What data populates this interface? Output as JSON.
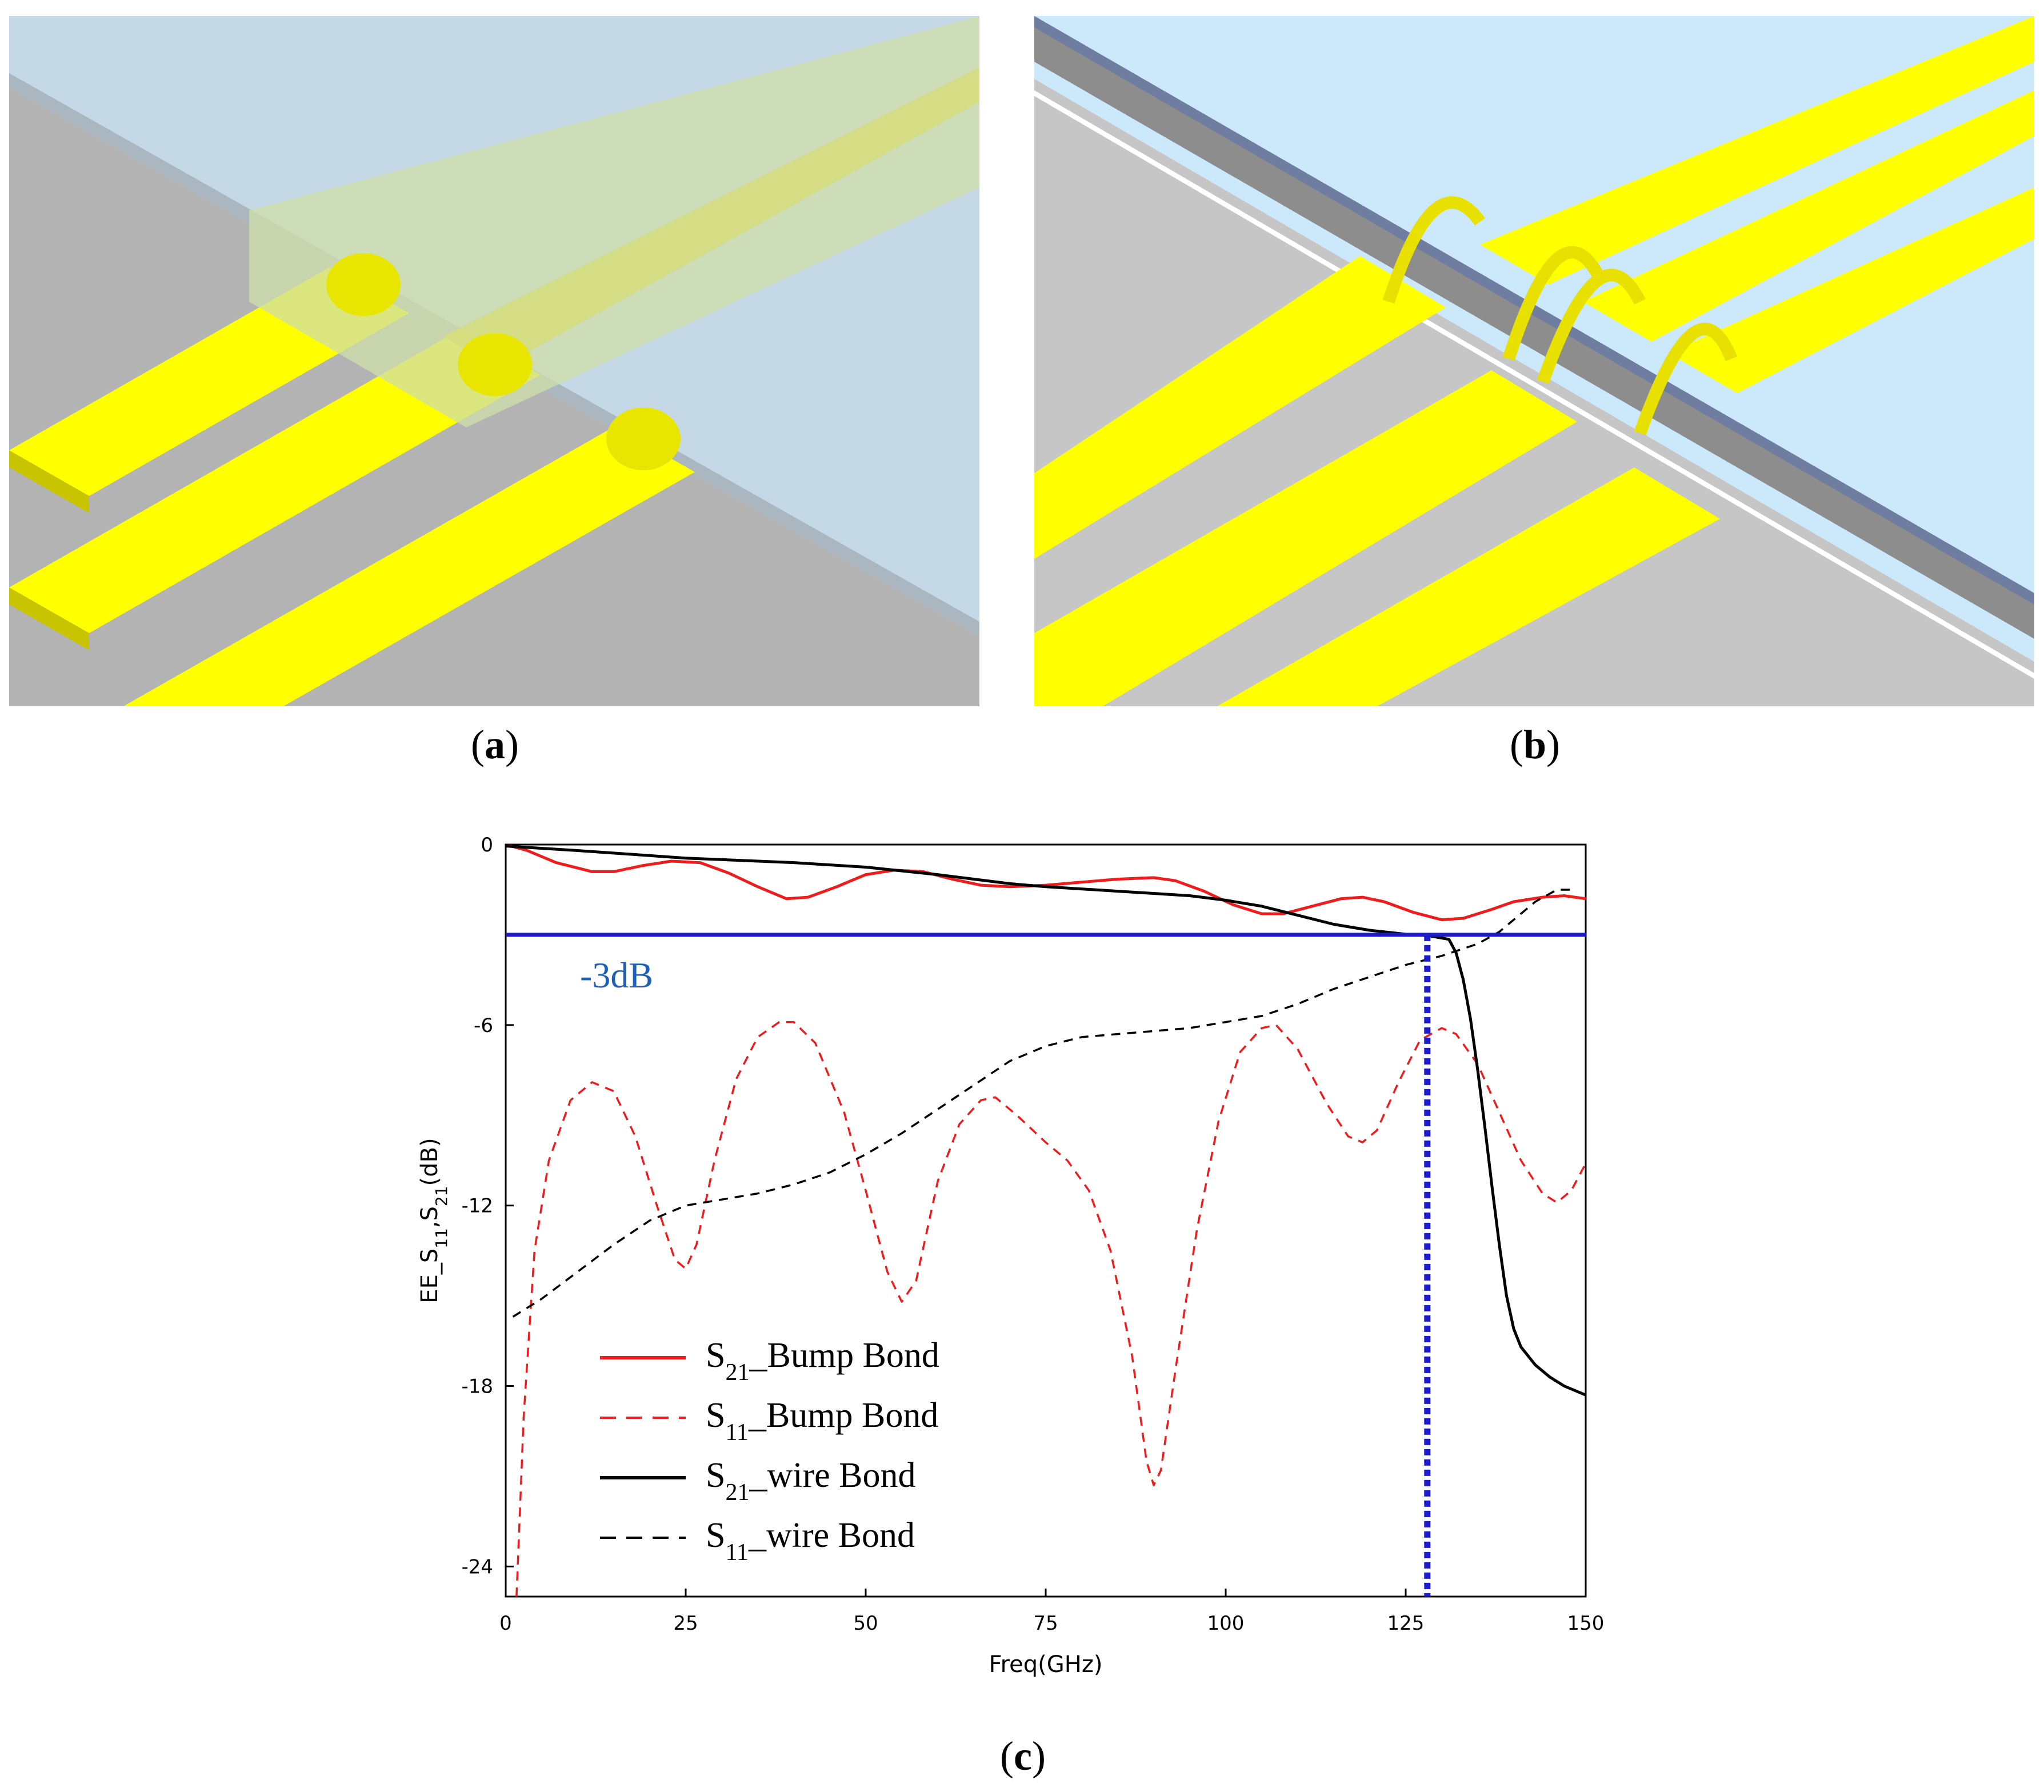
{
  "captions": {
    "a": "a",
    "b": "b",
    "c": "c"
  },
  "panels": {
    "a": {
      "description_icon": "bump-bond-3d-illustration"
    },
    "b": {
      "description_icon": "wire-bond-3d-illustration"
    }
  },
  "colors": {
    "gold": "#ffff00",
    "gold_dark": "#c8c400",
    "substrate": "#b9b9b9",
    "glass": "#c7dbe8",
    "red": "#ee1c1c",
    "blue_line": "#1d1dc8",
    "blue_text": "#1f5fb8"
  },
  "chart_data": {
    "type": "line",
    "title": "",
    "xlabel": "Freq(GHz)",
    "ylabel_parts": {
      "base": "EE_S",
      "sub1": "11",
      "sep": ",S",
      "sub2": "21",
      "unit": "(dB)"
    },
    "xlim": [
      0,
      150
    ],
    "ylim": [
      -25,
      0
    ],
    "xticks": [
      0,
      25,
      50,
      75,
      100,
      125,
      150
    ],
    "yticks": [
      0,
      -6,
      -12,
      -18,
      -24
    ],
    "xtick_labels": [
      "0",
      "25",
      "50",
      "75",
      "100",
      "125",
      "150"
    ],
    "ytick_labels": [
      "0",
      "-6",
      "-12",
      "-18",
      "-24"
    ],
    "annotations": [
      {
        "type": "hline",
        "y": -3,
        "label": "-3dB",
        "color": "#1d1dc8"
      },
      {
        "type": "vline",
        "x": 128,
        "y_from": -25,
        "y_to": -3,
        "color": "#1d1dc8",
        "dash": "dotted"
      }
    ],
    "series": [
      {
        "name": "S21_Bump Bond",
        "legend_main": "S",
        "legend_sub": "21",
        "legend_rest": "_Bump Bond",
        "color": "#ee1c1c",
        "dash": "solid",
        "points": [
          [
            0,
            0
          ],
          [
            3,
            -0.2
          ],
          [
            7,
            -0.6
          ],
          [
            12,
            -0.9
          ],
          [
            15,
            -0.9
          ],
          [
            19,
            -0.7
          ],
          [
            23,
            -0.55
          ],
          [
            27,
            -0.6
          ],
          [
            31,
            -0.95
          ],
          [
            35,
            -1.4
          ],
          [
            39,
            -1.8
          ],
          [
            42,
            -1.75
          ],
          [
            46,
            -1.4
          ],
          [
            50,
            -1.0
          ],
          [
            54,
            -0.85
          ],
          [
            58,
            -0.9
          ],
          [
            62,
            -1.15
          ],
          [
            66,
            -1.35
          ],
          [
            70,
            -1.4
          ],
          [
            75,
            -1.35
          ],
          [
            80,
            -1.25
          ],
          [
            85,
            -1.15
          ],
          [
            90,
            -1.1
          ],
          [
            93,
            -1.2
          ],
          [
            97,
            -1.55
          ],
          [
            101,
            -2.0
          ],
          [
            105,
            -2.3
          ],
          [
            108,
            -2.3
          ],
          [
            112,
            -2.05
          ],
          [
            116,
            -1.8
          ],
          [
            119,
            -1.75
          ],
          [
            122,
            -1.9
          ],
          [
            126,
            -2.25
          ],
          [
            130,
            -2.5
          ],
          [
            133,
            -2.45
          ],
          [
            137,
            -2.15
          ],
          [
            140,
            -1.9
          ],
          [
            144,
            -1.75
          ],
          [
            147,
            -1.7
          ],
          [
            150,
            -1.8
          ]
        ]
      },
      {
        "name": "S11_Bump Bond",
        "legend_main": "S",
        "legend_sub": "11",
        "legend_rest": "_Bump Bond",
        "color": "#ee1c1c",
        "dash": "dashed",
        "points": [
          [
            1.5,
            -25
          ],
          [
            2.5,
            -19
          ],
          [
            4,
            -13.5
          ],
          [
            6,
            -10.5
          ],
          [
            9,
            -8.5
          ],
          [
            12,
            -7.9
          ],
          [
            15,
            -8.2
          ],
          [
            18,
            -9.7
          ],
          [
            21,
            -12.0
          ],
          [
            23.5,
            -13.8
          ],
          [
            25,
            -14.1
          ],
          [
            26.5,
            -13.3
          ],
          [
            29,
            -10.5
          ],
          [
            32,
            -7.8
          ],
          [
            35,
            -6.4
          ],
          [
            38,
            -5.9
          ],
          [
            40,
            -5.9
          ],
          [
            43,
            -6.6
          ],
          [
            47,
            -8.9
          ],
          [
            50,
            -11.5
          ],
          [
            53,
            -14.2
          ],
          [
            55,
            -15.2
          ],
          [
            57,
            -14.5
          ],
          [
            60,
            -11.2
          ],
          [
            63,
            -9.3
          ],
          [
            66,
            -8.5
          ],
          [
            68,
            -8.4
          ],
          [
            71,
            -9.0
          ],
          [
            75,
            -9.9
          ],
          [
            78,
            -10.5
          ],
          [
            81,
            -11.5
          ],
          [
            84,
            -13.5
          ],
          [
            87,
            -17.0
          ],
          [
            89,
            -20.5
          ],
          [
            90,
            -21.3
          ],
          [
            91,
            -20.8
          ],
          [
            93,
            -17.5
          ],
          [
            96,
            -12.8
          ],
          [
            99,
            -9.2
          ],
          [
            102,
            -6.9
          ],
          [
            105,
            -6.1
          ],
          [
            107,
            -6.0
          ],
          [
            110,
            -6.8
          ],
          [
            114,
            -8.6
          ],
          [
            117,
            -9.7
          ],
          [
            119,
            -9.9
          ],
          [
            121,
            -9.5
          ],
          [
            124,
            -7.9
          ],
          [
            127,
            -6.5
          ],
          [
            130,
            -6.1
          ],
          [
            132,
            -6.3
          ],
          [
            135,
            -7.3
          ],
          [
            138,
            -8.9
          ],
          [
            141,
            -10.5
          ],
          [
            144,
            -11.6
          ],
          [
            146,
            -11.9
          ],
          [
            148,
            -11.5
          ],
          [
            150,
            -10.6
          ]
        ]
      },
      {
        "name": "S21_wire Bond",
        "legend_main": "S",
        "legend_sub": "21",
        "legend_rest": "_wire Bond",
        "color": "#000000",
        "dash": "solid",
        "points": [
          [
            0,
            -0.05
          ],
          [
            10,
            -0.2
          ],
          [
            25,
            -0.45
          ],
          [
            40,
            -0.6
          ],
          [
            50,
            -0.75
          ],
          [
            60,
            -1.0
          ],
          [
            65,
            -1.15
          ],
          [
            70,
            -1.3
          ],
          [
            75,
            -1.4
          ],
          [
            85,
            -1.55
          ],
          [
            95,
            -1.7
          ],
          [
            100,
            -1.85
          ],
          [
            105,
            -2.05
          ],
          [
            110,
            -2.35
          ],
          [
            115,
            -2.65
          ],
          [
            120,
            -2.85
          ],
          [
            125,
            -2.98
          ],
          [
            128,
            -3.02
          ],
          [
            131,
            -3.15
          ],
          [
            132,
            -3.6
          ],
          [
            133,
            -4.5
          ],
          [
            134,
            -5.8
          ],
          [
            135,
            -7.5
          ],
          [
            136,
            -9.4
          ],
          [
            137,
            -11.4
          ],
          [
            138,
            -13.3
          ],
          [
            139,
            -15.0
          ],
          [
            140,
            -16.1
          ],
          [
            141,
            -16.7
          ],
          [
            143,
            -17.3
          ],
          [
            145,
            -17.7
          ],
          [
            147,
            -18.0
          ],
          [
            150,
            -18.3
          ]
        ]
      },
      {
        "name": "S11_wire Bond",
        "legend_main": "S",
        "legend_sub": "11",
        "legend_rest": "_wire Bond",
        "color": "#000000",
        "dash": "dashed",
        "points": [
          [
            1,
            -15.7
          ],
          [
            5,
            -15.1
          ],
          [
            10,
            -14.2
          ],
          [
            15,
            -13.3
          ],
          [
            20,
            -12.5
          ],
          [
            25,
            -12.0
          ],
          [
            30,
            -11.8
          ],
          [
            35,
            -11.6
          ],
          [
            40,
            -11.3
          ],
          [
            45,
            -10.9
          ],
          [
            50,
            -10.3
          ],
          [
            55,
            -9.6
          ],
          [
            60,
            -8.8
          ],
          [
            65,
            -8.0
          ],
          [
            70,
            -7.2
          ],
          [
            75,
            -6.7
          ],
          [
            80,
            -6.4
          ],
          [
            85,
            -6.3
          ],
          [
            90,
            -6.2
          ],
          [
            95,
            -6.1
          ],
          [
            100,
            -5.9
          ],
          [
            105,
            -5.7
          ],
          [
            110,
            -5.3
          ],
          [
            115,
            -4.8
          ],
          [
            120,
            -4.4
          ],
          [
            125,
            -4.0
          ],
          [
            130,
            -3.7
          ],
          [
            135,
            -3.3
          ],
          [
            138,
            -2.9
          ],
          [
            140,
            -2.5
          ],
          [
            143,
            -1.9
          ],
          [
            146,
            -1.5
          ],
          [
            148,
            -1.5
          ]
        ]
      }
    ],
    "legend_position": "lower-left"
  }
}
